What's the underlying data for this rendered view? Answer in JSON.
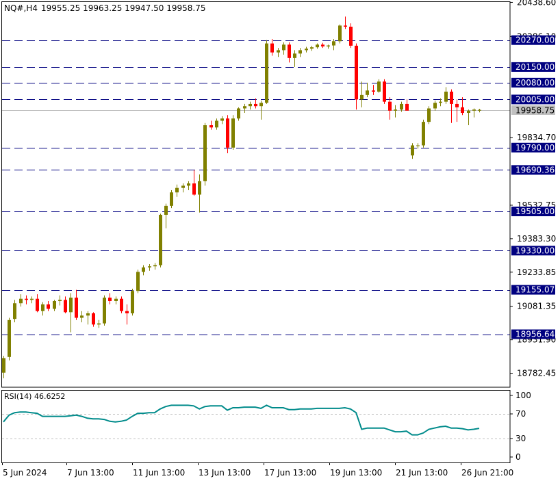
{
  "chart_data": {
    "type": "candlestick",
    "symbol_label": "NQ#,H4",
    "ohlc_readout": "19955.25 19963.25 19947.50 19958.75",
    "current_price_label": "19958.75",
    "y_axis_ticks": [
      "20438.60",
      "20286.10",
      "19834.70",
      "19532.75",
      "19383.30",
      "19233.85",
      "19081.35",
      "18931.90",
      "18782.45"
    ],
    "price_range": [
      18720,
      20440
    ],
    "levels": [
      {
        "value": 20270.0,
        "label": "20270.00"
      },
      {
        "value": 20150.0,
        "label": "20150.00"
      },
      {
        "value": 20080.0,
        "label": "20080.00"
      },
      {
        "value": 20005.0,
        "label": "20005.00"
      },
      {
        "value": 19790.0,
        "label": "19790.00"
      },
      {
        "value": 19690.36,
        "label": "19690.36"
      },
      {
        "value": 19505.0,
        "label": "19505.00"
      },
      {
        "value": 19330.0,
        "label": "19330.00"
      },
      {
        "value": 19155.07,
        "label": "19155.07"
      },
      {
        "value": 18956.64,
        "label": "18956.64"
      }
    ],
    "x_axis_ticks": [
      "5 Jun 2024",
      "7 Jun 13:00",
      "11 Jun 13:00",
      "13 Jun 13:00",
      "17 Jun 13:00",
      "19 Jun 13:00",
      "21 Jun 13:00",
      "26 Jun 21:00"
    ],
    "candles": [
      [
        18785,
        18860,
        18760,
        18850
      ],
      [
        18855,
        19030,
        18840,
        19020
      ],
      [
        19025,
        19110,
        19010,
        19095
      ],
      [
        19095,
        19135,
        19080,
        19115
      ],
      [
        19115,
        19130,
        19090,
        19110
      ],
      [
        19110,
        19125,
        19095,
        19115
      ],
      [
        19115,
        19135,
        19055,
        19060
      ],
      [
        19060,
        19100,
        19040,
        19090
      ],
      [
        19090,
        19105,
        19060,
        19070
      ],
      [
        19070,
        19110,
        19060,
        19105
      ],
      [
        19105,
        19130,
        19085,
        19110
      ],
      [
        19110,
        19125,
        19050,
        19055
      ],
      [
        19055,
        19140,
        18965,
        19120
      ],
      [
        19120,
        19155,
        19020,
        19030
      ],
      [
        19030,
        19060,
        19010,
        19040
      ],
      [
        19040,
        19060,
        19000,
        19050
      ],
      [
        19050,
        19055,
        18990,
        19000
      ],
      [
        19000,
        19020,
        18985,
        19005
      ],
      [
        19005,
        19130,
        18995,
        19120
      ],
      [
        19120,
        19140,
        19090,
        19105
      ],
      [
        19105,
        19125,
        19090,
        19115
      ],
      [
        19115,
        19125,
        19050,
        19060
      ],
      [
        19060,
        19090,
        19000,
        19050
      ],
      [
        19050,
        19160,
        19040,
        19150
      ],
      [
        19150,
        19245,
        19140,
        19235
      ],
      [
        19235,
        19265,
        19220,
        19255
      ],
      [
        19255,
        19270,
        19240,
        19260
      ],
      [
        19260,
        19275,
        19245,
        19265
      ],
      [
        19265,
        19495,
        19255,
        19490
      ],
      [
        19490,
        19540,
        19430,
        19530
      ],
      [
        19530,
        19600,
        19520,
        19590
      ],
      [
        19590,
        19625,
        19570,
        19610
      ],
      [
        19610,
        19630,
        19590,
        19620
      ],
      [
        19620,
        19640,
        19600,
        19630
      ],
      [
        19630,
        19690,
        19575,
        19580
      ],
      [
        19580,
        19670,
        19500,
        19640
      ],
      [
        19640,
        19900,
        19620,
        19890
      ],
      [
        19890,
        19910,
        19870,
        19880
      ],
      [
        19880,
        19920,
        19870,
        19910
      ],
      [
        19910,
        19930,
        19895,
        19920
      ],
      [
        19920,
        19935,
        19765,
        19790
      ],
      [
        19790,
        19935,
        19780,
        19920
      ],
      [
        19920,
        19970,
        19910,
        19965
      ],
      [
        19965,
        19985,
        19945,
        19975
      ],
      [
        19975,
        19995,
        19960,
        19985
      ],
      [
        19985,
        20010,
        19965,
        19975
      ],
      [
        19975,
        20000,
        19915,
        19990
      ],
      [
        19990,
        20270,
        19985,
        20255
      ],
      [
        20255,
        20275,
        20200,
        20215
      ],
      [
        20215,
        20235,
        20195,
        20225
      ],
      [
        20225,
        20260,
        20205,
        20250
      ],
      [
        20250,
        20260,
        20170,
        20190
      ],
      [
        20190,
        20225,
        20150,
        20210
      ],
      [
        20210,
        20235,
        20195,
        20225
      ],
      [
        20225,
        20240,
        20215,
        20232
      ],
      [
        20232,
        20245,
        20222,
        20238
      ],
      [
        20238,
        20255,
        20232,
        20250
      ],
      [
        20250,
        20258,
        20235,
        20242
      ],
      [
        20242,
        20250,
        20232,
        20246
      ],
      [
        20246,
        20275,
        20225,
        20265
      ],
      [
        20265,
        20340,
        20255,
        20335
      ],
      [
        20335,
        20375,
        20320,
        20330
      ],
      [
        20330,
        20345,
        20235,
        20245
      ],
      [
        20245,
        20255,
        19960,
        20005
      ],
      [
        20005,
        20085,
        19970,
        20025
      ],
      [
        20025,
        20080,
        20015,
        20045
      ],
      [
        20045,
        20070,
        20025,
        20040
      ],
      [
        20040,
        20095,
        20035,
        20085
      ],
      [
        20085,
        20095,
        19985,
        19995
      ],
      [
        19995,
        20015,
        19915,
        19955
      ],
      [
        19955,
        19980,
        19925,
        19960
      ],
      [
        19960,
        19995,
        19950,
        19985
      ],
      [
        19985,
        20005,
        19965,
        19955
      ],
      [
        19755,
        19810,
        19740,
        19800
      ],
      [
        19800,
        19810,
        19785,
        19800
      ],
      [
        19800,
        19915,
        19790,
        19905
      ],
      [
        19905,
        19975,
        19895,
        19965
      ],
      [
        19965,
        20000,
        19955,
        19990
      ],
      [
        19990,
        20010,
        19975,
        19995
      ],
      [
        19995,
        20060,
        19985,
        20040
      ],
      [
        20040,
        20050,
        19900,
        19985
      ],
      [
        19985,
        20005,
        19905,
        19970
      ],
      [
        19970,
        20015,
        19935,
        19945
      ],
      [
        19945,
        19960,
        19890,
        19955
      ],
      [
        19955,
        19965,
        19925,
        19960
      ],
      [
        19955,
        19963.25,
        19947.5,
        19958.75
      ]
    ],
    "rsi": {
      "label": "RSI(14) 46.6252",
      "y_ticks": [
        "100",
        "70",
        "30",
        "0"
      ],
      "levels": [
        70,
        30
      ],
      "values": [
        57,
        68,
        72,
        73,
        73,
        72,
        71,
        66,
        66,
        66,
        66,
        66,
        67,
        68,
        66,
        63,
        62,
        62,
        61,
        58,
        57,
        58,
        60,
        66,
        71,
        71,
        72,
        72,
        78,
        82,
        84,
        84,
        84,
        84,
        83,
        78,
        82,
        83,
        83,
        83,
        76,
        80,
        80,
        81,
        81,
        81,
        79,
        84,
        80,
        80,
        80,
        77,
        77,
        78,
        78,
        78,
        79,
        79,
        79,
        79,
        79,
        80,
        78,
        72,
        45,
        47,
        47,
        47,
        47,
        44,
        41,
        41,
        42,
        36,
        36,
        39,
        45,
        47,
        49,
        50,
        47,
        47,
        46,
        44,
        45,
        46.6
      ]
    }
  }
}
